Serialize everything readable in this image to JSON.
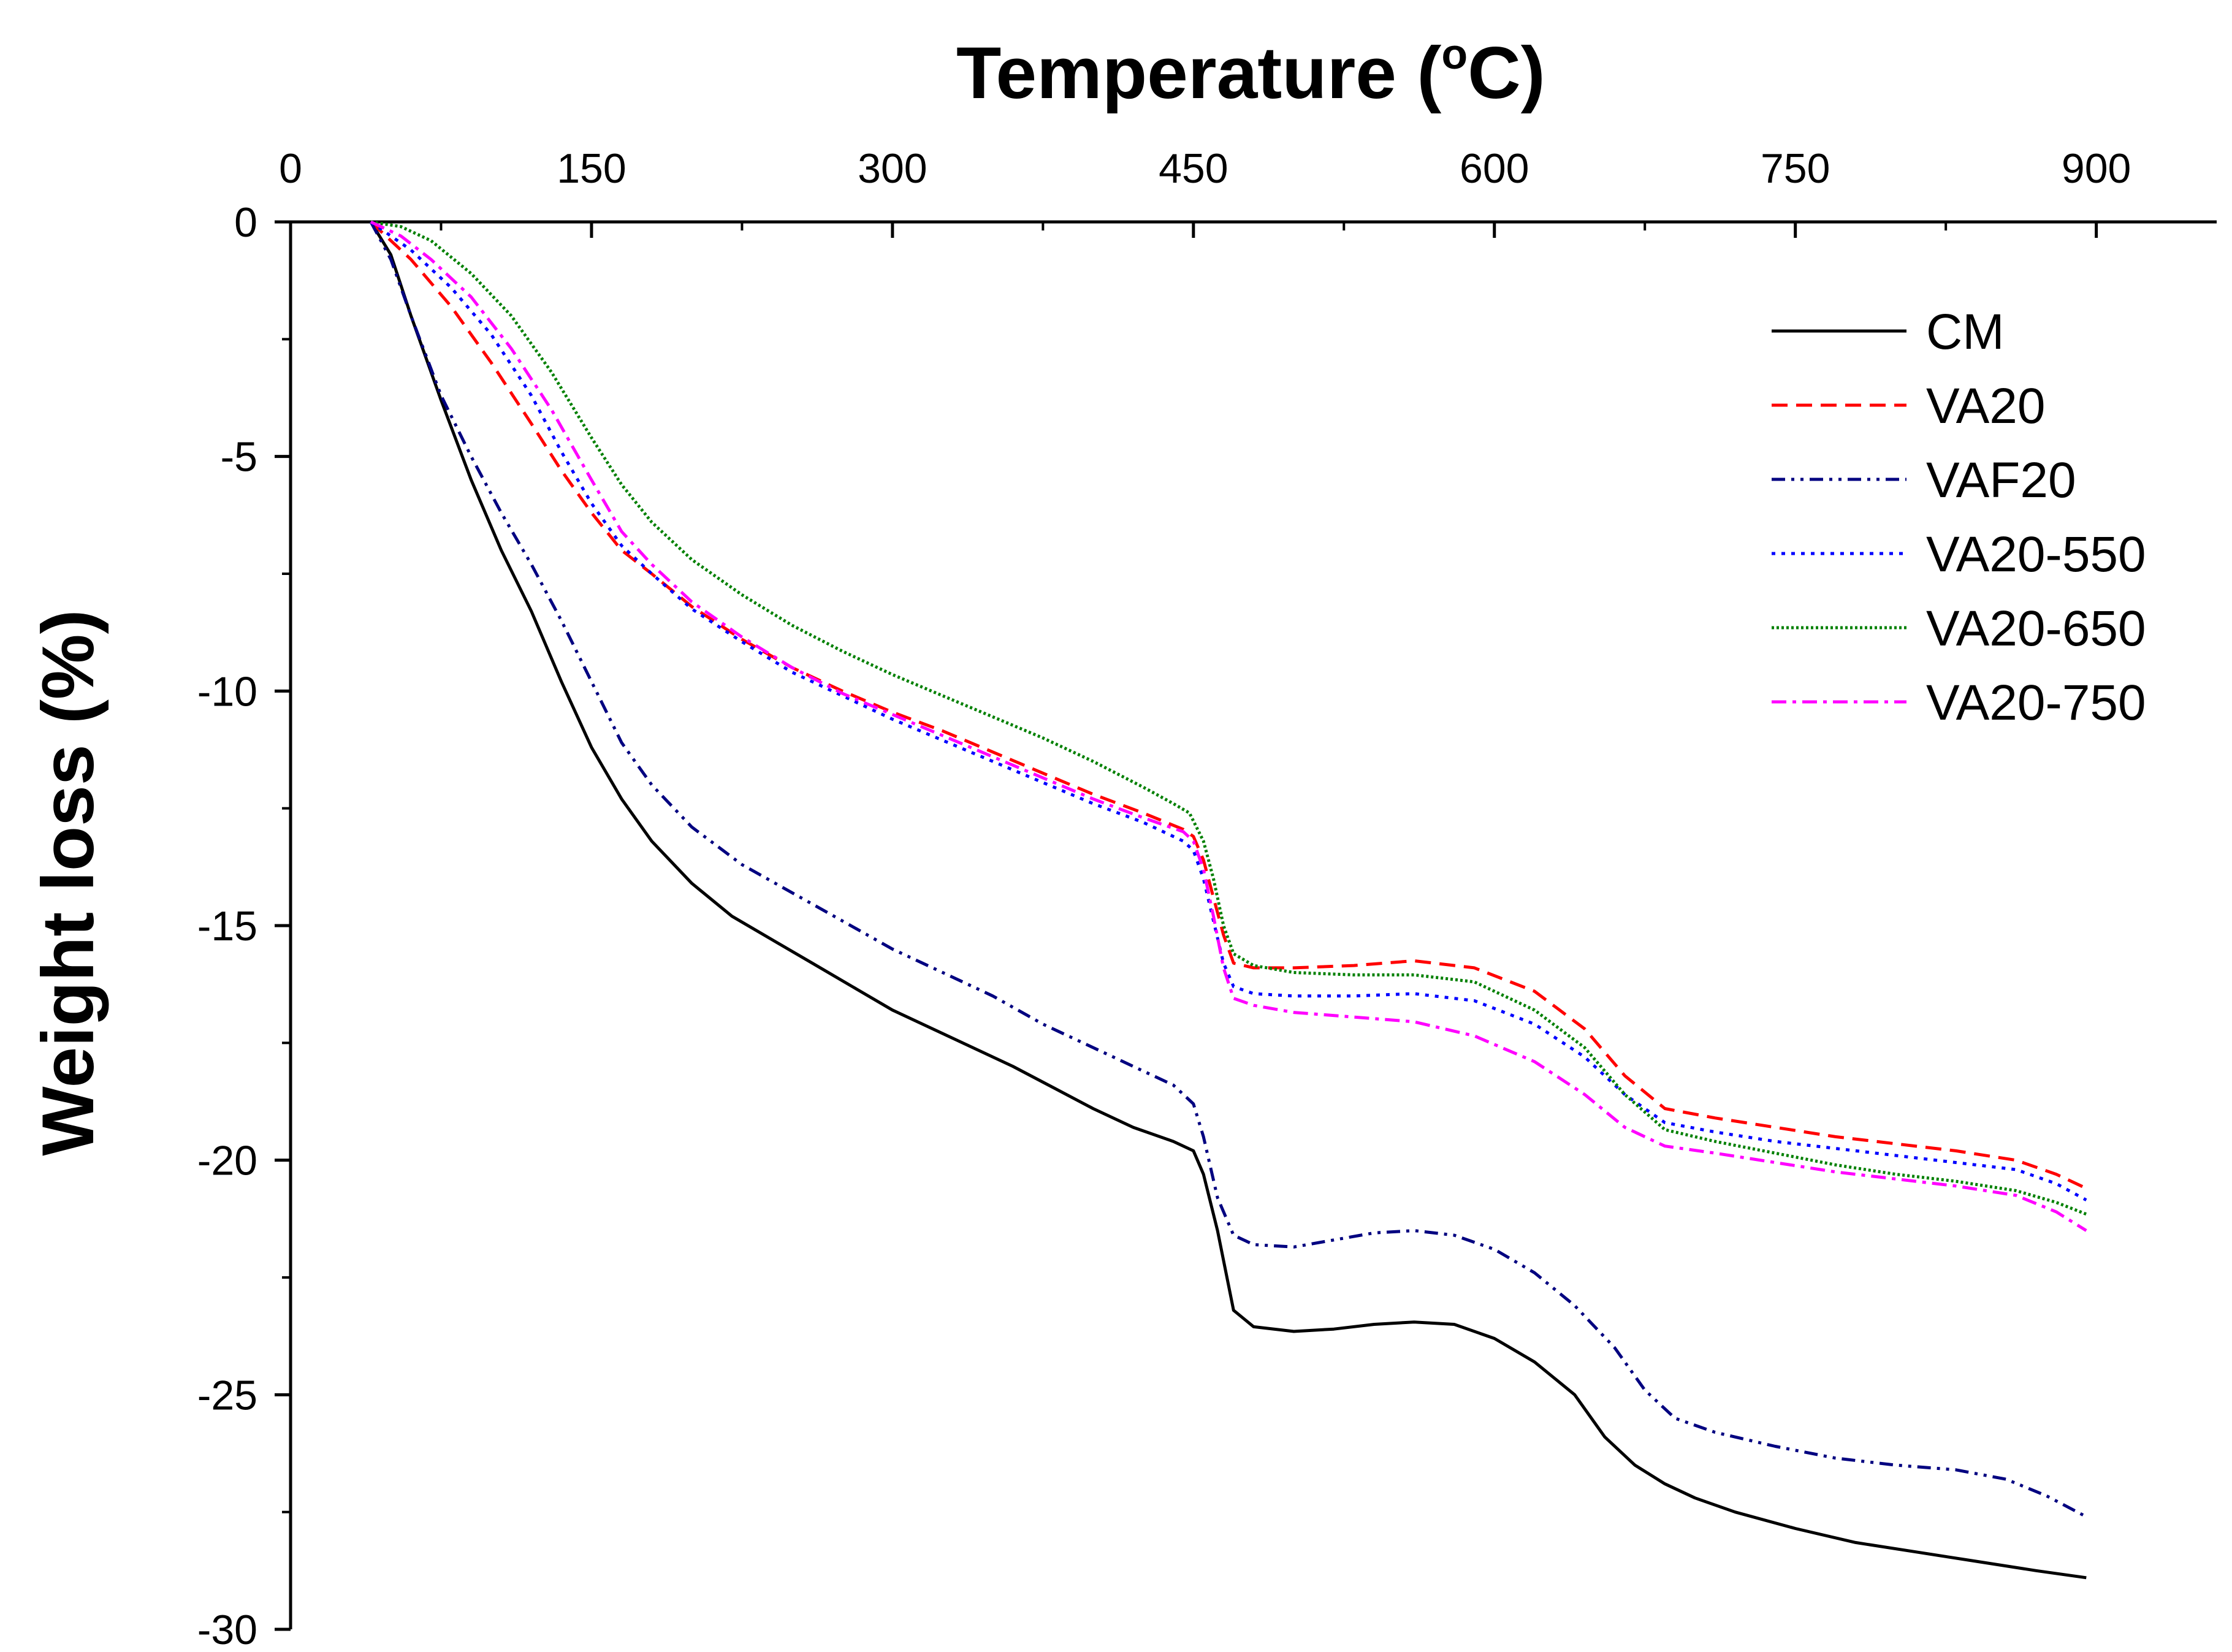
{
  "chart_data": {
    "type": "line",
    "title": "",
    "xlabel": "Temperature (",
    "xlabel_degree": "o",
    "xlabel_unit": "C)",
    "ylabel": "Weight loss (%)",
    "x_axis_position": "top",
    "xlim": [
      0,
      960
    ],
    "ylim": [
      -30,
      0
    ],
    "xticks": [
      0,
      150,
      300,
      450,
      600,
      750,
      900
    ],
    "yticks": [
      0,
      -5,
      -10,
      -15,
      -20,
      -25,
      -30
    ],
    "grid": false,
    "legend_position": "top-right",
    "series": [
      {
        "name": "CM",
        "color": "#000000",
        "dash": "solid",
        "points": [
          [
            40,
            0
          ],
          [
            50,
            -0.7
          ],
          [
            60,
            -2
          ],
          [
            75,
            -3.8
          ],
          [
            90,
            -5.5
          ],
          [
            105,
            -7
          ],
          [
            120,
            -8.3
          ],
          [
            135,
            -9.8
          ],
          [
            150,
            -11.2
          ],
          [
            165,
            -12.3
          ],
          [
            180,
            -13.2
          ],
          [
            200,
            -14.1
          ],
          [
            220,
            -14.8
          ],
          [
            240,
            -15.3
          ],
          [
            260,
            -15.8
          ],
          [
            280,
            -16.3
          ],
          [
            300,
            -16.8
          ],
          [
            320,
            -17.2
          ],
          [
            340,
            -17.6
          ],
          [
            360,
            -18
          ],
          [
            380,
            -18.45
          ],
          [
            400,
            -18.9
          ],
          [
            420,
            -19.3
          ],
          [
            440,
            -19.6
          ],
          [
            450,
            -19.8
          ],
          [
            455,
            -20.3
          ],
          [
            462,
            -21.5
          ],
          [
            470,
            -23.2
          ],
          [
            480,
            -23.55
          ],
          [
            500,
            -23.65
          ],
          [
            520,
            -23.6
          ],
          [
            540,
            -23.5
          ],
          [
            560,
            -23.45
          ],
          [
            580,
            -23.5
          ],
          [
            600,
            -23.8
          ],
          [
            620,
            -24.3
          ],
          [
            640,
            -25
          ],
          [
            655,
            -25.9
          ],
          [
            670,
            -26.5
          ],
          [
            685,
            -26.9
          ],
          [
            700,
            -27.2
          ],
          [
            720,
            -27.5
          ],
          [
            750,
            -27.85
          ],
          [
            780,
            -28.15
          ],
          [
            810,
            -28.35
          ],
          [
            840,
            -28.55
          ],
          [
            870,
            -28.75
          ],
          [
            895,
            -28.9
          ]
        ]
      },
      {
        "name": "VA20",
        "color": "#ff0000",
        "dash": "dashed",
        "points": [
          [
            40,
            0
          ],
          [
            60,
            -0.8
          ],
          [
            80,
            -1.8
          ],
          [
            100,
            -3
          ],
          [
            120,
            -4.3
          ],
          [
            135,
            -5.3
          ],
          [
            150,
            -6.2
          ],
          [
            165,
            -7
          ],
          [
            180,
            -7.5
          ],
          [
            200,
            -8.2
          ],
          [
            225,
            -8.9
          ],
          [
            250,
            -9.5
          ],
          [
            275,
            -10
          ],
          [
            300,
            -10.45
          ],
          [
            325,
            -10.85
          ],
          [
            350,
            -11.3
          ],
          [
            375,
            -11.75
          ],
          [
            400,
            -12.2
          ],
          [
            425,
            -12.6
          ],
          [
            445,
            -12.95
          ],
          [
            450,
            -13.1
          ],
          [
            455,
            -13.6
          ],
          [
            460,
            -14.4
          ],
          [
            465,
            -15.2
          ],
          [
            470,
            -15.8
          ],
          [
            480,
            -15.9
          ],
          [
            500,
            -15.9
          ],
          [
            530,
            -15.85
          ],
          [
            560,
            -15.75
          ],
          [
            590,
            -15.9
          ],
          [
            620,
            -16.4
          ],
          [
            645,
            -17.2
          ],
          [
            665,
            -18.2
          ],
          [
            685,
            -18.9
          ],
          [
            710,
            -19.1
          ],
          [
            740,
            -19.3
          ],
          [
            770,
            -19.5
          ],
          [
            800,
            -19.65
          ],
          [
            830,
            -19.8
          ],
          [
            860,
            -20
          ],
          [
            880,
            -20.3
          ],
          [
            895,
            -20.6
          ]
        ]
      },
      {
        "name": "VAF20",
        "color": "#000080",
        "dash": "dashdotdot",
        "points": [
          [
            40,
            0
          ],
          [
            50,
            -0.8
          ],
          [
            60,
            -2
          ],
          [
            75,
            -3.7
          ],
          [
            90,
            -5
          ],
          [
            105,
            -6.2
          ],
          [
            120,
            -7.3
          ],
          [
            135,
            -8.5
          ],
          [
            150,
            -9.8
          ],
          [
            165,
            -11.1
          ],
          [
            180,
            -12
          ],
          [
            200,
            -12.9
          ],
          [
            225,
            -13.7
          ],
          [
            250,
            -14.3
          ],
          [
            275,
            -14.9
          ],
          [
            300,
            -15.5
          ],
          [
            325,
            -16
          ],
          [
            350,
            -16.5
          ],
          [
            375,
            -17.1
          ],
          [
            400,
            -17.6
          ],
          [
            425,
            -18.1
          ],
          [
            440,
            -18.4
          ],
          [
            450,
            -18.8
          ],
          [
            455,
            -19.5
          ],
          [
            462,
            -20.8
          ],
          [
            470,
            -21.6
          ],
          [
            480,
            -21.8
          ],
          [
            500,
            -21.85
          ],
          [
            520,
            -21.7
          ],
          [
            540,
            -21.55
          ],
          [
            560,
            -21.5
          ],
          [
            580,
            -21.6
          ],
          [
            600,
            -21.9
          ],
          [
            620,
            -22.4
          ],
          [
            640,
            -23.1
          ],
          [
            660,
            -24
          ],
          [
            675,
            -24.9
          ],
          [
            690,
            -25.5
          ],
          [
            710,
            -25.8
          ],
          [
            740,
            -26.1
          ],
          [
            770,
            -26.35
          ],
          [
            800,
            -26.5
          ],
          [
            830,
            -26.6
          ],
          [
            855,
            -26.8
          ],
          [
            875,
            -27.15
          ],
          [
            895,
            -27.6
          ]
        ]
      },
      {
        "name": "VA20-550",
        "color": "#0000ff",
        "dash": "dotted",
        "points": [
          [
            40,
            0
          ],
          [
            60,
            -0.6
          ],
          [
            80,
            -1.4
          ],
          [
            100,
            -2.4
          ],
          [
            120,
            -3.7
          ],
          [
            135,
            -4.9
          ],
          [
            150,
            -6
          ],
          [
            165,
            -6.9
          ],
          [
            180,
            -7.5
          ],
          [
            200,
            -8.25
          ],
          [
            225,
            -8.95
          ],
          [
            250,
            -9.6
          ],
          [
            275,
            -10.1
          ],
          [
            300,
            -10.6
          ],
          [
            325,
            -11.05
          ],
          [
            350,
            -11.5
          ],
          [
            375,
            -11.95
          ],
          [
            400,
            -12.4
          ],
          [
            425,
            -12.8
          ],
          [
            445,
            -13.2
          ],
          [
            450,
            -13.4
          ],
          [
            455,
            -14
          ],
          [
            460,
            -14.9
          ],
          [
            465,
            -15.8
          ],
          [
            470,
            -16.3
          ],
          [
            480,
            -16.45
          ],
          [
            500,
            -16.5
          ],
          [
            530,
            -16.5
          ],
          [
            560,
            -16.45
          ],
          [
            590,
            -16.6
          ],
          [
            620,
            -17.1
          ],
          [
            645,
            -17.8
          ],
          [
            665,
            -18.6
          ],
          [
            685,
            -19.2
          ],
          [
            710,
            -19.4
          ],
          [
            740,
            -19.6
          ],
          [
            770,
            -19.75
          ],
          [
            800,
            -19.9
          ],
          [
            830,
            -20.05
          ],
          [
            860,
            -20.2
          ],
          [
            880,
            -20.5
          ],
          [
            895,
            -20.85
          ]
        ]
      },
      {
        "name": "VA20-650",
        "color": "#008000",
        "dash": "densedot",
        "points": [
          [
            40,
            0
          ],
          [
            55,
            -0.1
          ],
          [
            70,
            -0.4
          ],
          [
            90,
            -1.1
          ],
          [
            110,
            -2
          ],
          [
            130,
            -3.2
          ],
          [
            150,
            -4.6
          ],
          [
            165,
            -5.6
          ],
          [
            180,
            -6.4
          ],
          [
            200,
            -7.2
          ],
          [
            225,
            -7.95
          ],
          [
            250,
            -8.6
          ],
          [
            275,
            -9.15
          ],
          [
            300,
            -9.65
          ],
          [
            325,
            -10.1
          ],
          [
            350,
            -10.55
          ],
          [
            375,
            -11
          ],
          [
            400,
            -11.5
          ],
          [
            425,
            -12.05
          ],
          [
            440,
            -12.4
          ],
          [
            448,
            -12.6
          ],
          [
            455,
            -13.2
          ],
          [
            460,
            -14
          ],
          [
            465,
            -15
          ],
          [
            470,
            -15.6
          ],
          [
            480,
            -15.85
          ],
          [
            500,
            -16
          ],
          [
            530,
            -16.05
          ],
          [
            560,
            -16.05
          ],
          [
            590,
            -16.2
          ],
          [
            620,
            -16.8
          ],
          [
            645,
            -17.6
          ],
          [
            665,
            -18.6
          ],
          [
            685,
            -19.35
          ],
          [
            710,
            -19.6
          ],
          [
            740,
            -19.85
          ],
          [
            770,
            -20.1
          ],
          [
            800,
            -20.3
          ],
          [
            830,
            -20.45
          ],
          [
            860,
            -20.65
          ],
          [
            880,
            -20.9
          ],
          [
            895,
            -21.15
          ]
        ]
      },
      {
        "name": "VA20-750",
        "color": "#ff00ff",
        "dash": "dashdot",
        "points": [
          [
            40,
            0
          ],
          [
            55,
            -0.3
          ],
          [
            70,
            -0.8
          ],
          [
            90,
            -1.6
          ],
          [
            110,
            -2.7
          ],
          [
            130,
            -4
          ],
          [
            150,
            -5.5
          ],
          [
            165,
            -6.6
          ],
          [
            180,
            -7.3
          ],
          [
            200,
            -8.1
          ],
          [
            225,
            -8.85
          ],
          [
            250,
            -9.5
          ],
          [
            275,
            -10.05
          ],
          [
            300,
            -10.5
          ],
          [
            325,
            -10.95
          ],
          [
            350,
            -11.4
          ],
          [
            375,
            -11.85
          ],
          [
            400,
            -12.3
          ],
          [
            425,
            -12.7
          ],
          [
            445,
            -13
          ],
          [
            450,
            -13.2
          ],
          [
            455,
            -13.8
          ],
          [
            460,
            -14.8
          ],
          [
            465,
            -15.9
          ],
          [
            470,
            -16.55
          ],
          [
            480,
            -16.7
          ],
          [
            500,
            -16.85
          ],
          [
            530,
            -16.95
          ],
          [
            560,
            -17.05
          ],
          [
            590,
            -17.35
          ],
          [
            620,
            -17.9
          ],
          [
            645,
            -18.6
          ],
          [
            665,
            -19.3
          ],
          [
            685,
            -19.7
          ],
          [
            710,
            -19.85
          ],
          [
            740,
            -20.05
          ],
          [
            770,
            -20.25
          ],
          [
            800,
            -20.4
          ],
          [
            830,
            -20.55
          ],
          [
            860,
            -20.75
          ],
          [
            880,
            -21.1
          ],
          [
            895,
            -21.5
          ]
        ]
      }
    ]
  }
}
